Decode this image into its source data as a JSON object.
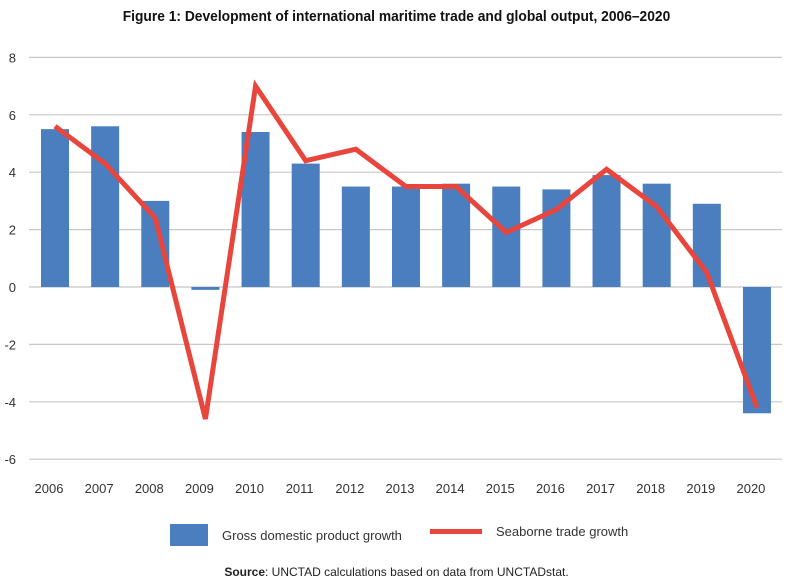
{
  "chart_data": {
    "type": "bar",
    "title": "Figure 1: Development of international maritime trade and global output, 2006–2020",
    "categories": [
      "2006",
      "2007",
      "2008",
      "2009",
      "2010",
      "2011",
      "2012",
      "2013",
      "2014",
      "2015",
      "2016",
      "2017",
      "2018",
      "2019",
      "2020"
    ],
    "series": [
      {
        "name": "Gross domestic product growth",
        "type": "bar",
        "color": "#4a7ebf",
        "values": [
          5.5,
          5.6,
          3.0,
          -0.1,
          5.4,
          4.3,
          3.5,
          3.5,
          3.6,
          3.5,
          3.4,
          3.9,
          3.6,
          2.9,
          -4.4
        ]
      },
      {
        "name": "Seaborne trade growth",
        "type": "line",
        "color": "#e8453c",
        "values": [
          5.6,
          4.3,
          2.4,
          -4.6,
          7.0,
          4.4,
          4.8,
          3.5,
          3.5,
          1.9,
          2.7,
          4.1,
          2.8,
          0.5,
          -4.2
        ]
      }
    ],
    "ylim": [
      -6,
      8
    ],
    "yticks": [
      "8",
      "6",
      "4",
      "2",
      "0",
      "-2",
      "-4",
      "-6"
    ],
    "grid": true,
    "legend": "bottom"
  },
  "source": {
    "label": "Source",
    "text": ": UNCTAD calculations based on data from UNCTADstat."
  }
}
